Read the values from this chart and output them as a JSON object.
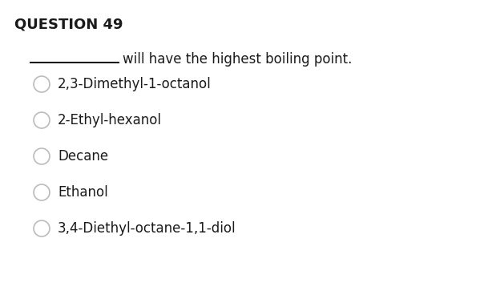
{
  "title": "QUESTION 49",
  "prompt_prefix": "____________",
  "prompt_suffix": " will have the highest boiling point.",
  "options": [
    "2,3-Dimethyl-1-octanol",
    "2-Ethyl-hexanol",
    "Decane",
    "Ethanol",
    "3,4-Diethyl-octane-1,1-diol"
  ],
  "background_color": "#ffffff",
  "text_color": "#1a1a1a",
  "title_fontsize": 13,
  "prompt_fontsize": 12,
  "option_fontsize": 12,
  "circle_color": "#bbbbbb",
  "circle_linewidth": 1.2
}
